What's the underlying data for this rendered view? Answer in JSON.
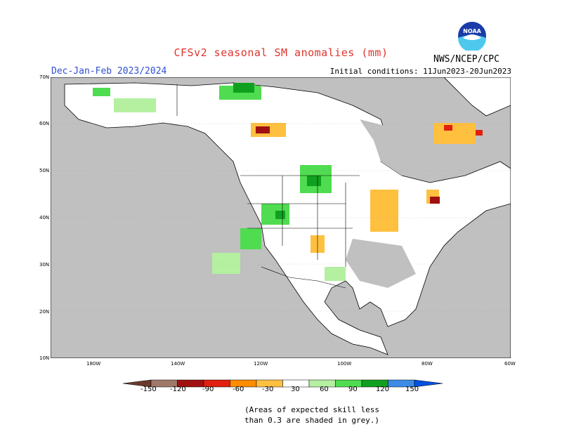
{
  "title": "CFSv2 seasonal SM anomalies (mm)",
  "period_label": "Dec-Jan-Feb 2023/2024",
  "initial_conditions": "Initial conditions: 11Jun2023-20Jun2023",
  "agency": "NWS/NCEP/CPC",
  "logo_text": "NOAA",
  "lat_labels": [
    "70N",
    "60N",
    "50N",
    "40N",
    "30N",
    "20N",
    "10N"
  ],
  "lon_labels": [
    "180W",
    "140W",
    "120W",
    "100W",
    "80W",
    "60W"
  ],
  "legend": {
    "labels": [
      "-150",
      "-120",
      "-90",
      "-60",
      "-30",
      "30",
      "60",
      "90",
      "120",
      "150"
    ],
    "colors": [
      "#6b3a2c",
      "#a0786a",
      "#a01010",
      "#e02010",
      "#ff8c00",
      "#ffc040",
      "#ffffff",
      "#b4f0a0",
      "#50dc50",
      "#10a020",
      "#3c8ce6",
      "#0050e0"
    ]
  },
  "footnote": [
    "(Areas of expected skill less",
    "than 0.3 are shaded in grey.)"
  ],
  "colors": {
    "grey_area": "#c0c0c0",
    "land": "#ffffff",
    "title": "#e0342c",
    "period": "#2f4fd0"
  }
}
